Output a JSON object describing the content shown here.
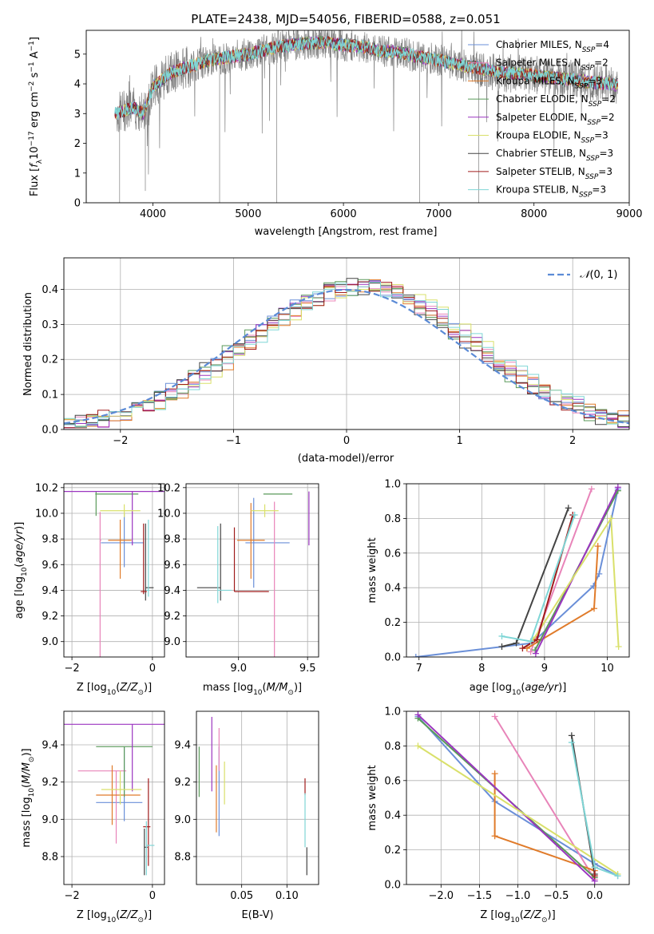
{
  "figure": {
    "title": "PLATE=2438, MJD=54056, FIBERID=0588, z=0.051"
  },
  "colors": {
    "data_spectrum": "#808080",
    "gaussian": "#5b8bd6",
    "models": [
      "#6a8fd8",
      "#e884b9",
      "#e07b2a",
      "#5a9a5a",
      "#9b35c0",
      "#d9e06a",
      "#444444",
      "#a01c1c",
      "#7fd6d6"
    ]
  },
  "chart_data": [
    {
      "id": "spectrum",
      "type": "line",
      "title": "PLATE=2438, MJD=54056, FIBERID=0588, z=0.051",
      "xlabel": "wavelength [Angstrom, rest frame]",
      "ylabel": "Flux [f_λ 10^-17 erg cm^-2 s^-1 A^-1]",
      "xlim": [
        3300,
        9000
      ],
      "ylim": [
        0,
        5.8
      ],
      "xticks": [
        4000,
        5000,
        6000,
        7000,
        8000,
        9000
      ],
      "yticks": [
        0,
        1,
        2,
        3,
        4,
        5
      ],
      "legend_position": "top-right",
      "legend": [
        "Chabrier MILES, N_SSP=4",
        "Salpeter MILES, N_SSP=2",
        "Kroupa MILES, N_SSP=3",
        "Chabrier ELODIE, N_SSP=2",
        "Salpeter ELODIE, N_SSP=2",
        "Kroupa ELODIE, N_SSP=3",
        "Chabrier STELIB, N_SSP=3",
        "Salpeter STELIB, N_SSP=3",
        "Kroupa STELIB, N_SSP=3"
      ],
      "continuum_points": [
        [
          3620,
          3.0
        ],
        [
          3700,
          3.1
        ],
        [
          3800,
          3.2
        ],
        [
          3900,
          3.0
        ],
        [
          4000,
          3.9
        ],
        [
          4200,
          4.4
        ],
        [
          4400,
          4.6
        ],
        [
          4600,
          4.8
        ],
        [
          4800,
          4.9
        ],
        [
          5000,
          5.0
        ],
        [
          5200,
          5.15
        ],
        [
          5400,
          5.3
        ],
        [
          5600,
          5.35
        ],
        [
          5800,
          5.4
        ],
        [
          6000,
          5.3
        ],
        [
          6200,
          5.25
        ],
        [
          6400,
          5.1
        ],
        [
          6600,
          5.05
        ],
        [
          6800,
          4.9
        ],
        [
          7000,
          4.8
        ],
        [
          7200,
          4.65
        ],
        [
          7400,
          4.55
        ],
        [
          7600,
          4.4
        ],
        [
          7800,
          4.35
        ],
        [
          8000,
          4.3
        ],
        [
          8200,
          4.2
        ],
        [
          8400,
          4.15
        ],
        [
          8600,
          4.05
        ],
        [
          8800,
          4.0
        ],
        [
          8880,
          3.95
        ]
      ],
      "model_range": [
        3600,
        8880
      ]
    },
    {
      "id": "residuals",
      "type": "bar",
      "xlabel": "(data-model)/error",
      "ylabel": "Normed distribution",
      "xlim": [
        -2.5,
        2.5
      ],
      "ylim": [
        0,
        0.49
      ],
      "xticks": [
        -2,
        -1,
        0,
        1,
        2
      ],
      "yticks": [
        0.0,
        0.1,
        0.2,
        0.3,
        0.4
      ],
      "bin_width": 0.1,
      "legend_position": "top-right",
      "legend": [
        "N(0,1)"
      ]
    },
    {
      "id": "age-vs-z",
      "type": "scatter",
      "xlabel": "Z [log10(Z/Z_sun)]",
      "ylabel": "age [log10(age/yr)]",
      "xlim": [
        -2.2,
        0.3
      ],
      "ylim": [
        8.88,
        10.23
      ],
      "xticks": [
        -2,
        0
      ],
      "yticks": [
        9.0,
        9.2,
        9.4,
        9.6,
        9.8,
        10.0,
        10.2
      ],
      "points": [
        {
          "x": -0.7,
          "xerr": [
            0.58,
            0.48
          ],
          "y": 9.77,
          "yerr": [
            0.19,
            0.23
          ]
        },
        {
          "x": -1.3,
          "xerr": [
            0.0,
            0.03
          ],
          "y": 9.79,
          "yerr": [
            0.92,
            0.22
          ]
        },
        {
          "x": -0.8,
          "xerr": [
            0.3,
            0.28
          ],
          "y": 9.79,
          "yerr": [
            0.3,
            0.16
          ]
        },
        {
          "x": -1.4,
          "xerr": [
            0.02,
            1.05
          ],
          "y": 10.15,
          "yerr": [
            0.17,
            0.02
          ]
        },
        {
          "x": -0.5,
          "xerr": [
            1.8,
            0.9
          ],
          "y": 10.17,
          "yerr": [
            0.42,
            0.0
          ]
        },
        {
          "x": -0.7,
          "xerr": [
            0.6,
            0.4
          ],
          "y": 10.02,
          "yerr": [
            0.05,
            0.05
          ]
        },
        {
          "x": -0.17,
          "xerr": [
            0.0,
            0.2
          ],
          "y": 9.42,
          "yerr": [
            0.1,
            0.5
          ]
        },
        {
          "x": -0.22,
          "xerr": [
            0.07,
            0.08
          ],
          "y": 9.39,
          "yerr": [
            0.02,
            0.53
          ]
        },
        {
          "x": -0.1,
          "xerr": [
            0.05,
            0.02
          ],
          "y": 9.4,
          "yerr": [
            0.05,
            0.55
          ]
        }
      ]
    },
    {
      "id": "age-vs-mass",
      "type": "scatter",
      "xlabel": "mass [log10(M/M_sun)]",
      "ylabel": "",
      "xlim": [
        8.62,
        9.58
      ],
      "ylim": [
        8.88,
        10.23
      ],
      "xticks": [
        9.0,
        9.5
      ],
      "yticks": [
        9.0,
        9.2,
        9.4,
        9.6,
        9.8,
        10.0,
        10.2
      ],
      "points": [
        {
          "x": 9.11,
          "xerr": [
            0.06,
            0.26
          ],
          "y": 9.77,
          "yerr": [
            0.35,
            0.35
          ]
        },
        {
          "x": 9.26,
          "xerr": [
            0.0,
            0.0
          ],
          "y": 9.79,
          "yerr": [
            0.91,
            0.3
          ]
        },
        {
          "x": 9.09,
          "xerr": [
            0.1,
            0.1
          ],
          "y": 9.79,
          "yerr": [
            0.3,
            0.29
          ]
        },
        {
          "x": 9.18,
          "xerr": [
            0.0,
            0.21
          ],
          "y": 10.15,
          "yerr": [
            0.0,
            0.0
          ]
        },
        {
          "x": 9.51,
          "xerr": [
            0.0,
            0.0
          ],
          "y": 10.17,
          "yerr": [
            0.42,
            0.0
          ]
        },
        {
          "x": 9.19,
          "xerr": [
            0.1,
            0.1
          ],
          "y": 10.02,
          "yerr": [
            0.05,
            0.05
          ]
        },
        {
          "x": 8.87,
          "xerr": [
            0.17,
            0.0
          ],
          "y": 9.42,
          "yerr": [
            0.1,
            0.5
          ]
        },
        {
          "x": 8.97,
          "xerr": [
            0.0,
            0.25
          ],
          "y": 9.39,
          "yerr": [
            0.0,
            0.5
          ]
        },
        {
          "x": 8.85,
          "xerr": [
            0.0,
            0.1
          ],
          "y": 9.4,
          "yerr": [
            0.1,
            0.5
          ]
        }
      ]
    },
    {
      "id": "weight-vs-age",
      "type": "line",
      "xlabel": "age [log10(age/yr)]",
      "ylabel": "mass weight",
      "xlim": [
        6.8,
        10.35
      ],
      "ylim": [
        0,
        1.0
      ],
      "xticks": [
        7,
        8,
        9,
        10
      ],
      "yticks": [
        0.0,
        0.2,
        0.4,
        0.6,
        0.8,
        1.0
      ],
      "series": [
        {
          "points": [
            [
              6.95,
              0.0
            ],
            [
              8.8,
              0.08
            ],
            [
              9.78,
              0.41
            ],
            [
              9.87,
              0.48
            ],
            [
              10.17,
              0.97
            ]
          ]
        },
        {
          "points": [
            [
              8.78,
              0.03
            ],
            [
              9.75,
              0.97
            ]
          ]
        },
        {
          "points": [
            [
              8.72,
              0.05
            ],
            [
              9.79,
              0.28
            ],
            [
              9.85,
              0.64
            ]
          ]
        },
        {
          "points": [
            [
              8.85,
              0.04
            ],
            [
              10.17,
              0.96
            ]
          ]
        },
        {
          "points": [
            [
              8.86,
              0.02
            ],
            [
              10.17,
              0.98
            ]
          ]
        },
        {
          "points": [
            [
              8.82,
              0.1
            ],
            [
              10.06,
              0.8
            ],
            [
              10.18,
              0.06
            ]
          ]
        },
        {
          "points": [
            [
              8.32,
              0.06
            ],
            [
              8.55,
              0.08
            ],
            [
              9.38,
              0.86
            ]
          ]
        },
        {
          "points": [
            [
              8.65,
              0.05
            ],
            [
              8.88,
              0.1
            ],
            [
              9.45,
              0.82
            ]
          ]
        },
        {
          "points": [
            [
              8.32,
              0.12
            ],
            [
              8.78,
              0.09
            ],
            [
              9.48,
              0.82
            ]
          ]
        }
      ]
    },
    {
      "id": "mass-vs-z",
      "type": "scatter",
      "xlabel": "Z [log10(Z/Z_sun)]",
      "ylabel": "mass [log10(M/M_sun)]",
      "xlim": [
        -2.2,
        0.3
      ],
      "ylim": [
        8.65,
        9.58
      ],
      "xticks": [
        -2,
        0
      ],
      "yticks": [
        8.8,
        9.0,
        9.2,
        9.4
      ],
      "points": [
        {
          "x": -0.7,
          "xerr": [
            0.7,
            0.45
          ],
          "y": 9.09,
          "yerr": [
            0.1,
            0.3
          ]
        },
        {
          "x": -0.9,
          "xerr": [
            0.95,
            0.25
          ],
          "y": 9.26,
          "yerr": [
            0.39,
            0.0
          ]
        },
        {
          "x": -1.0,
          "xerr": [
            0.4,
            0.7
          ],
          "y": 9.13,
          "yerr": [
            0.16,
            0.16
          ]
        },
        {
          "x": -0.7,
          "xerr": [
            0.7,
            0.7
          ],
          "y": 9.39,
          "yerr": [
            0.27,
            0.0
          ]
        },
        {
          "x": -0.5,
          "xerr": [
            1.75,
            1.05
          ],
          "y": 9.51,
          "yerr": [
            0.36,
            0.0
          ]
        },
        {
          "x": -0.8,
          "xerr": [
            0.47,
            0.53
          ],
          "y": 9.16,
          "yerr": [
            0.08,
            0.1
          ]
        },
        {
          "x": -0.2,
          "xerr": [
            0.0,
            0.08
          ],
          "y": 8.85,
          "yerr": [
            0.15,
            0.1
          ]
        },
        {
          "x": -0.1,
          "xerr": [
            0.13,
            0.05
          ],
          "y": 8.96,
          "yerr": [
            0.21,
            0.26
          ]
        },
        {
          "x": -0.15,
          "xerr": [
            0.0,
            0.2
          ],
          "y": 8.86,
          "yerr": [
            0.16,
            0.13
          ]
        }
      ]
    },
    {
      "id": "mass-vs-ebv",
      "type": "scatter",
      "xlabel": "E(B-V)",
      "ylabel": "",
      "xlim": [
        0.0,
        0.135
      ],
      "ylim": [
        8.65,
        9.58
      ],
      "xticks": [
        0.05,
        0.1
      ],
      "yticks": [
        8.8,
        9.0,
        9.2,
        9.4
      ],
      "points": [
        {
          "x": 0.025,
          "xerr": [
            0.0,
            0.0
          ],
          "y": 9.09,
          "yerr": [
            0.18,
            0.3
          ]
        },
        {
          "x": 0.025,
          "xerr": [
            0.0,
            0.0
          ],
          "y": 9.26,
          "yerr": [
            0.0,
            0.23
          ]
        },
        {
          "x": 0.022,
          "xerr": [
            0.0,
            0.0
          ],
          "y": 9.13,
          "yerr": [
            0.2,
            0.16
          ]
        },
        {
          "x": 0.003,
          "xerr": [
            0.0,
            0.0
          ],
          "y": 9.39,
          "yerr": [
            0.27,
            0.0
          ]
        },
        {
          "x": 0.017,
          "xerr": [
            0.0,
            0.0
          ],
          "y": 9.51,
          "yerr": [
            0.36,
            0.04
          ]
        },
        {
          "x": 0.031,
          "xerr": [
            0.0,
            0.0
          ],
          "y": 9.16,
          "yerr": [
            0.08,
            0.15
          ]
        },
        {
          "x": 0.122,
          "xerr": [
            0.0,
            0.0
          ],
          "y": 8.85,
          "yerr": [
            0.15,
            0.0
          ]
        },
        {
          "x": 0.12,
          "xerr": [
            0.0,
            0.0
          ],
          "y": 9.13,
          "yerr": [
            0.0,
            0.09
          ]
        },
        {
          "x": 0.12,
          "xerr": [
            0.0,
            0.0
          ],
          "y": 8.95,
          "yerr": [
            0.1,
            0.19
          ]
        }
      ]
    },
    {
      "id": "weight-vs-z",
      "type": "line",
      "xlabel": "Z [log10(Z/Z_sun)]",
      "ylabel": "mass weight",
      "xlim": [
        -2.45,
        0.45
      ],
      "ylim": [
        0,
        1.0
      ],
      "xticks": [
        -2.0,
        -1.5,
        -1.0,
        -0.5,
        0.0
      ],
      "yticks": [
        0.0,
        0.2,
        0.4,
        0.6,
        0.8,
        1.0
      ],
      "series": [
        {
          "points": [
            [
              -2.3,
              0.97
            ],
            [
              -1.3,
              0.48
            ],
            [
              0.0,
              0.12
            ],
            [
              0.3,
              0.05
            ]
          ]
        },
        {
          "points": [
            [
              -1.3,
              0.97
            ],
            [
              0.0,
              0.03
            ]
          ]
        },
        {
          "points": [
            [
              -1.3,
              0.64
            ],
            [
              -1.3,
              0.28
            ],
            [
              0.0,
              0.08
            ]
          ]
        },
        {
          "points": [
            [
              -2.3,
              0.96
            ],
            [
              0.0,
              0.04
            ]
          ]
        },
        {
          "points": [
            [
              -2.3,
              0.98
            ],
            [
              0.0,
              0.02
            ]
          ]
        },
        {
          "points": [
            [
              -2.3,
              0.8
            ],
            [
              0.3,
              0.06
            ]
          ]
        },
        {
          "points": [
            [
              -0.3,
              0.86
            ],
            [
              0.0,
              0.06
            ]
          ]
        },
        {
          "points": [
            [
              0.0,
              0.1
            ],
            [
              0.0,
              0.05
            ]
          ]
        },
        {
          "points": [
            [
              -0.3,
              0.82
            ],
            [
              0.0,
              0.1
            ],
            [
              0.3,
              0.05
            ]
          ]
        }
      ]
    }
  ]
}
